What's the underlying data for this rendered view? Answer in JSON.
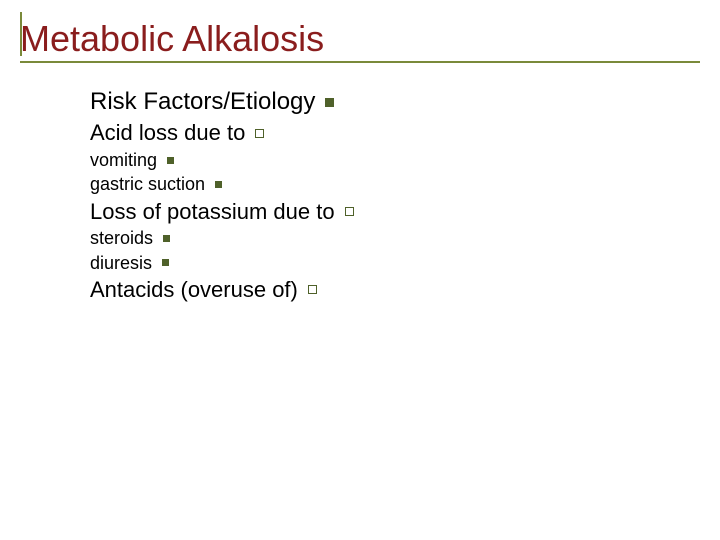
{
  "slide": {
    "title": "Metabolic Alkalosis",
    "title_color": "#8a1d1d",
    "title_fontsize": 36,
    "rule_color": "#7a8a3a",
    "background_color": "#ffffff",
    "text_color": "#000000",
    "bullets": {
      "filled_color": "#4f612a",
      "filled_size": 9,
      "outline_color": "#4f612a",
      "outline_size": 9,
      "outline_border": 1.5,
      "small_filled_size": 7
    },
    "items": [
      {
        "text": "Risk Factors/Etiology",
        "level": 1,
        "bullet": "filled"
      },
      {
        "text": "Acid loss due to",
        "level": 2,
        "bullet": "outline"
      },
      {
        "text": "vomiting",
        "level": 3,
        "bullet": "small"
      },
      {
        "text": "gastric suction",
        "level": 3,
        "bullet": "small"
      },
      {
        "text": "Loss of potassium due to",
        "level": 2,
        "bullet": "outline"
      },
      {
        "text": "steroids",
        "level": 3,
        "bullet": "small"
      },
      {
        "text": "diuresis",
        "level": 3,
        "bullet": "small"
      },
      {
        "text": "Antacids (overuse of)",
        "level": 2,
        "bullet": "outline"
      }
    ]
  }
}
